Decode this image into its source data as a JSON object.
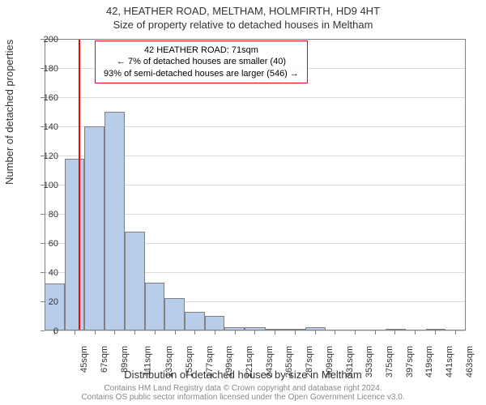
{
  "title1": "42, HEATHER ROAD, MELTHAM, HOLMFIRTH, HD9 4HT",
  "title2": "Size of property relative to detached houses in Meltham",
  "ylabel": "Number of detached properties",
  "xlabel": "Distribution of detached houses by size in Meltham",
  "attribution_line1": "Contains HM Land Registry data © Crown copyright and database right 2024.",
  "attribution_line2": "Contains OS public sector information licensed under the Open Government Licence v3.0.",
  "histogram": {
    "type": "histogram",
    "ylim": [
      0,
      200
    ],
    "ytick_step": 20,
    "xlim": [
      34,
      497
    ],
    "xtick_start": 45,
    "xtick_step": 22,
    "xtick_unit": "sqm",
    "bar_color": "#b7cde9",
    "bar_border": "#808080",
    "grid_color": "#d9d9d9",
    "axis_color": "#808080",
    "background_color": "#ffffff",
    "bin_edges": [
      34,
      56,
      78,
      100,
      122,
      144,
      166,
      188,
      210,
      232,
      254,
      277,
      299,
      321,
      343,
      365,
      387,
      409,
      431,
      453,
      475,
      497
    ],
    "values": [
      32,
      118,
      140,
      150,
      68,
      33,
      22,
      13,
      10,
      2,
      2,
      1,
      1,
      2,
      0,
      0,
      0,
      1,
      0,
      1,
      0
    ]
  },
  "reference": {
    "sqm": 71,
    "color": "#ff0000",
    "width": 2
  },
  "annotation": {
    "line1": "42 HEATHER ROAD: 71sqm",
    "line2": "← 7% of detached houses are smaller (40)",
    "line3": "93% of semi-detached houses are larger (546) →",
    "border_color": "#ff0000",
    "fontsize": 11
  }
}
